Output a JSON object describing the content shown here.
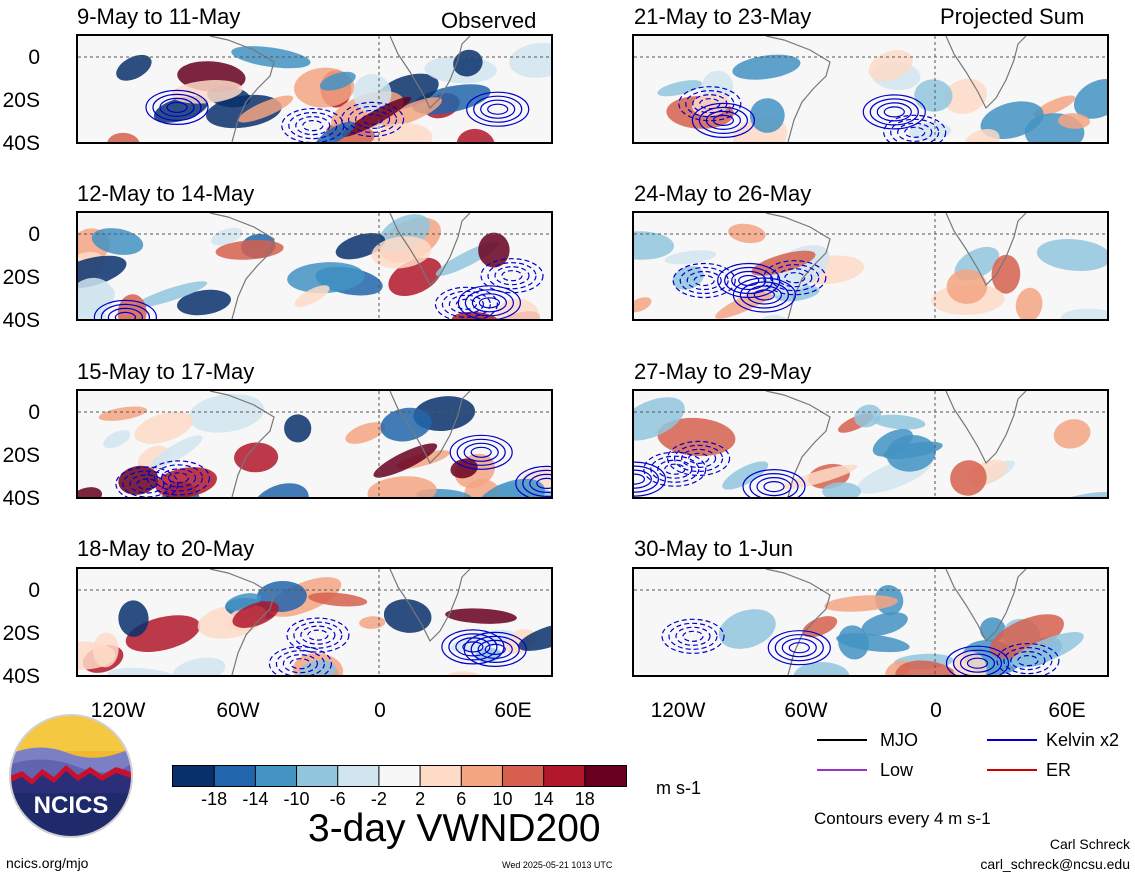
{
  "header": {
    "left_tag": "Observed",
    "right_tag": "Projected Sum"
  },
  "panels_left": [
    {
      "title": "9-May to 11-May"
    },
    {
      "title": "12-May to 14-May"
    },
    {
      "title": "15-May to 17-May"
    },
    {
      "title": "18-May to 20-May"
    }
  ],
  "panels_right": [
    {
      "title": "21-May to 23-May"
    },
    {
      "title": "24-May to 26-May"
    },
    {
      "title": "27-May to 29-May"
    },
    {
      "title": "30-May to 1-Jun"
    }
  ],
  "axes": {
    "y_ticks": [
      "0",
      "20S",
      "40S"
    ],
    "x_ticks": [
      "120W",
      "60W",
      "0",
      "60E"
    ]
  },
  "colorbar": {
    "colors": [
      "#08306b",
      "#2166ac",
      "#4393c3",
      "#92c5de",
      "#d1e5f0",
      "#f7f7f7",
      "#fddbc7",
      "#f4a582",
      "#d6604d",
      "#b2182b",
      "#67001f"
    ],
    "ticks": [
      "-18",
      "-14",
      "-10",
      "-6",
      "-2",
      "2",
      "6",
      "10",
      "14",
      "18"
    ],
    "units": "m s-1"
  },
  "legend": {
    "items": [
      {
        "label": "MJO",
        "color": "#000000"
      },
      {
        "label": "Kelvin x2",
        "color": "#0000cc"
      },
      {
        "label": "Low",
        "color": "#9933cc"
      },
      {
        "label": "ER",
        "color": "#cc0000"
      }
    ],
    "contour_note": "Contours every 4 m s-1"
  },
  "main_title": "3-day VWND200",
  "logo_text": "NCICS",
  "footer": {
    "site": "ncics.org/mjo",
    "timestamp": "Wed 2025-05-21 1013 UTC",
    "author": "Carl Schreck",
    "email": "carl_schreck@ncsu.edu"
  },
  "chart_data": {
    "type": "heatmap",
    "variable": "3-day VWND200",
    "units": "m s-1",
    "contour_interval": "Contours every 4 m s-1",
    "x_ticks": [
      "120W",
      "60W",
      "0",
      "60E"
    ],
    "y_ticks": [
      "0",
      "20S",
      "40S"
    ],
    "color_levels": [
      -18,
      -14,
      -10,
      -6,
      -2,
      2,
      6,
      10,
      14,
      18
    ],
    "series": [
      {
        "name": "MJO",
        "color": "#000000"
      },
      {
        "name": "Kelvin x2",
        "color": "#0000cc"
      },
      {
        "name": "Low",
        "color": "#9933cc"
      },
      {
        "name": "ER",
        "color": "#cc0000"
      }
    ],
    "panels": [
      {
        "title": "9-May to 11-May",
        "group": "Observed"
      },
      {
        "title": "12-May to 14-May",
        "group": "Observed"
      },
      {
        "title": "15-May to 17-May",
        "group": "Observed"
      },
      {
        "title": "18-May to 20-May",
        "group": "Observed"
      },
      {
        "title": "21-May to 23-May",
        "group": "Projected Sum"
      },
      {
        "title": "24-May to 26-May",
        "group": "Projected Sum"
      },
      {
        "title": "27-May to 29-May",
        "group": "Projected Sum"
      },
      {
        "title": "30-May to 1-Jun",
        "group": "Projected Sum"
      }
    ]
  }
}
